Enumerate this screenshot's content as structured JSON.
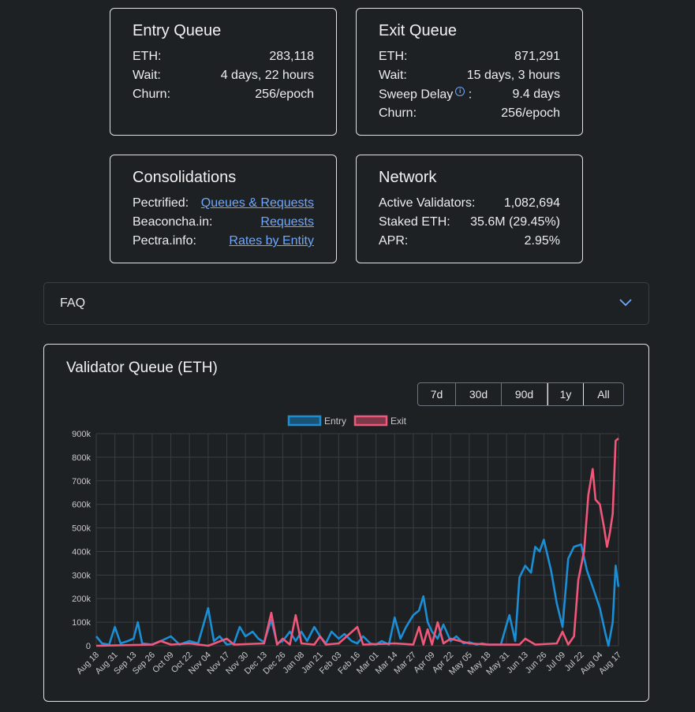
{
  "entry_queue": {
    "title": "Entry Queue",
    "eth_label": "ETH:",
    "eth_value": "283,118",
    "wait_label": "Wait:",
    "wait_value": "4 days, 22 hours",
    "churn_label": "Churn:",
    "churn_value": "256/epoch"
  },
  "exit_queue": {
    "title": "Exit Queue",
    "eth_label": "ETH:",
    "eth_value": "871,291",
    "wait_label": "Wait:",
    "wait_value": "15 days, 3 hours",
    "sweep_label": "Sweep Delay",
    "sweep_colon": ":",
    "sweep_value": "9.4 days",
    "info_glyph": "i",
    "churn_label": "Churn:",
    "churn_value": "256/epoch"
  },
  "consolidations": {
    "title": "Consolidations",
    "rows": [
      {
        "label": "Pectrified:",
        "link": "Queues & Requests"
      },
      {
        "label": "Beaconcha.in:",
        "link": "Requests"
      },
      {
        "label": "Pectra.info:",
        "link": "Rates by Entity"
      }
    ]
  },
  "network": {
    "title": "Network",
    "active_label": "Active Validators:",
    "active_value": "1,082,694",
    "staked_label": "Staked ETH:",
    "staked_value": "35.6M (29.45%)",
    "apr_label": "APR:",
    "apr_value": "2.95%"
  },
  "faq": {
    "label": "FAQ"
  },
  "chart_section": {
    "title": "Validator Queue (ETH)",
    "ranges": [
      "7d",
      "30d",
      "90d",
      "1y",
      "All"
    ],
    "active_range": "1y"
  },
  "colors": {
    "entry": "#1a8fd6",
    "exit": "#f2577a",
    "link": "#6ea8fe"
  },
  "chart_data": {
    "type": "line",
    "title": "",
    "xlabel": "",
    "ylabel": "",
    "ylim": [
      0,
      900000
    ],
    "yticks": [
      "0",
      "100k",
      "200k",
      "300k",
      "400k",
      "500k",
      "600k",
      "700k",
      "800k",
      "900k"
    ],
    "xticks": [
      "Aug 18",
      "Aug 31",
      "Sep 13",
      "Sep 26",
      "Oct 09",
      "Oct 22",
      "Nov 04",
      "Nov 17",
      "Nov 30",
      "Dec 13",
      "Dec 26",
      "Jan 08",
      "Jan 21",
      "Feb 03",
      "Feb 16",
      "Mar 01",
      "Mar 14",
      "Mar 27",
      "Apr 09",
      "Apr 22",
      "May 05",
      "May 18",
      "May 31",
      "Jun 13",
      "Jun 26",
      "Jul 09",
      "Jul 22",
      "Aug 04",
      "Aug 17"
    ],
    "grid": true,
    "legend": "top-center",
    "series": [
      {
        "name": "Entry",
        "color": "#1a8fd6",
        "points": [
          [
            "Aug 18",
            40000
          ],
          [
            "Aug 22",
            10000
          ],
          [
            "Aug 27",
            5000
          ],
          [
            "Aug 31",
            80000
          ],
          [
            "Sep 4",
            10000
          ],
          [
            "Sep 9",
            20000
          ],
          [
            "Sep 13",
            30000
          ],
          [
            "Sep 16",
            100000
          ],
          [
            "Sep 19",
            10000
          ],
          [
            "Sep 26",
            5000
          ],
          [
            "Oct 02",
            20000
          ],
          [
            "Oct 09",
            40000
          ],
          [
            "Oct 15",
            5000
          ],
          [
            "Oct 22",
            20000
          ],
          [
            "Oct 28",
            10000
          ],
          [
            "Nov 04",
            160000
          ],
          [
            "Nov 08",
            20000
          ],
          [
            "Nov 12",
            40000
          ],
          [
            "Nov 17",
            5000
          ],
          [
            "Nov 22",
            10000
          ],
          [
            "Nov 26",
            80000
          ],
          [
            "Nov 30",
            40000
          ],
          [
            "Dec 05",
            60000
          ],
          [
            "Dec 09",
            30000
          ],
          [
            "Dec 13",
            15000
          ],
          [
            "Dec 18",
            110000
          ],
          [
            "Dec 22",
            10000
          ],
          [
            "Dec 26",
            20000
          ],
          [
            "Dec 31",
            60000
          ],
          [
            "Jan 04",
            20000
          ],
          [
            "Jan 08",
            60000
          ],
          [
            "Jan 12",
            20000
          ],
          [
            "Jan 17",
            80000
          ],
          [
            "Jan 21",
            40000
          ],
          [
            "Jan 25",
            10000
          ],
          [
            "Jan 29",
            60000
          ],
          [
            "Feb 03",
            30000
          ],
          [
            "Feb 07",
            50000
          ],
          [
            "Feb 12",
            20000
          ],
          [
            "Feb 16",
            10000
          ],
          [
            "Feb 20",
            40000
          ],
          [
            "Feb 25",
            10000
          ],
          [
            "Mar 01",
            5000
          ],
          [
            "Mar 05",
            20000
          ],
          [
            "Mar 10",
            5000
          ],
          [
            "Mar 14",
            120000
          ],
          [
            "Mar 18",
            30000
          ],
          [
            "Mar 22",
            80000
          ],
          [
            "Mar 27",
            130000
          ],
          [
            "Mar 31",
            150000
          ],
          [
            "Apr 03",
            210000
          ],
          [
            "Apr 06",
            100000
          ],
          [
            "Apr 09",
            60000
          ],
          [
            "Apr 13",
            30000
          ],
          [
            "Apr 17",
            90000
          ],
          [
            "Apr 22",
            20000
          ],
          [
            "Apr 26",
            40000
          ],
          [
            "May 01",
            10000
          ],
          [
            "May 05",
            15000
          ],
          [
            "May 10",
            5000
          ],
          [
            "May 14",
            10000
          ],
          [
            "May 18",
            5000
          ],
          [
            "May 22",
            5000
          ],
          [
            "May 27",
            5000
          ],
          [
            "May 31",
            90000
          ],
          [
            "Jun 02",
            130000
          ],
          [
            "Jun 06",
            20000
          ],
          [
            "Jun 09",
            290000
          ],
          [
            "Jun 13",
            340000
          ],
          [
            "Jun 17",
            310000
          ],
          [
            "Jun 20",
            420000
          ],
          [
            "Jun 23",
            400000
          ],
          [
            "Jun 26",
            450000
          ],
          [
            "Jul 01",
            320000
          ],
          [
            "Jul 05",
            180000
          ],
          [
            "Jul 09",
            80000
          ],
          [
            "Jul 13",
            370000
          ],
          [
            "Jul 17",
            420000
          ],
          [
            "Jul 22",
            430000
          ],
          [
            "Jul 26",
            320000
          ],
          [
            "Jul 30",
            250000
          ],
          [
            "Aug 04",
            160000
          ],
          [
            "Aug 08",
            50000
          ],
          [
            "Aug 10",
            0
          ],
          [
            "Aug 13",
            100000
          ],
          [
            "Aug 15",
            340000
          ],
          [
            "Aug 17",
            250000
          ]
        ]
      },
      {
        "name": "Exit",
        "color": "#f2577a",
        "points": [
          [
            "Aug 18",
            0
          ],
          [
            "Sep 26",
            5000
          ],
          [
            "Oct 02",
            20000
          ],
          [
            "Oct 09",
            5000
          ],
          [
            "Oct 22",
            10000
          ],
          [
            "Nov 04",
            0
          ],
          [
            "Nov 17",
            30000
          ],
          [
            "Nov 22",
            5000
          ],
          [
            "Dec 13",
            10000
          ],
          [
            "Dec 18",
            140000
          ],
          [
            "Dec 22",
            5000
          ],
          [
            "Dec 26",
            30000
          ],
          [
            "Dec 31",
            5000
          ],
          [
            "Jan 04",
            130000
          ],
          [
            "Jan 08",
            10000
          ],
          [
            "Jan 17",
            5000
          ],
          [
            "Jan 21",
            40000
          ],
          [
            "Jan 25",
            5000
          ],
          [
            "Feb 03",
            10000
          ],
          [
            "Feb 16",
            80000
          ],
          [
            "Feb 20",
            5000
          ],
          [
            "Mar 14",
            10000
          ],
          [
            "Mar 27",
            5000
          ],
          [
            "Mar 31",
            80000
          ],
          [
            "Apr 03",
            5000
          ],
          [
            "Apr 06",
            70000
          ],
          [
            "Apr 09",
            5000
          ],
          [
            "Apr 13",
            100000
          ],
          [
            "Apr 17",
            10000
          ],
          [
            "Apr 22",
            30000
          ],
          [
            "May 05",
            10000
          ],
          [
            "May 18",
            5000
          ],
          [
            "Jun 09",
            5000
          ],
          [
            "Jun 13",
            30000
          ],
          [
            "Jun 20",
            5000
          ],
          [
            "Jul 05",
            10000
          ],
          [
            "Jul 09",
            60000
          ],
          [
            "Jul 13",
            5000
          ],
          [
            "Jul 17",
            40000
          ],
          [
            "Jul 20",
            280000
          ],
          [
            "Jul 24",
            400000
          ],
          [
            "Jul 27",
            640000
          ],
          [
            "Jul 30",
            750000
          ],
          [
            "Aug 01",
            620000
          ],
          [
            "Aug 04",
            600000
          ],
          [
            "Aug 07",
            500000
          ],
          [
            "Aug 09",
            420000
          ],
          [
            "Aug 11",
            480000
          ],
          [
            "Aug 13",
            560000
          ],
          [
            "Aug 15",
            870000
          ],
          [
            "Aug 17",
            880000
          ]
        ]
      }
    ]
  }
}
